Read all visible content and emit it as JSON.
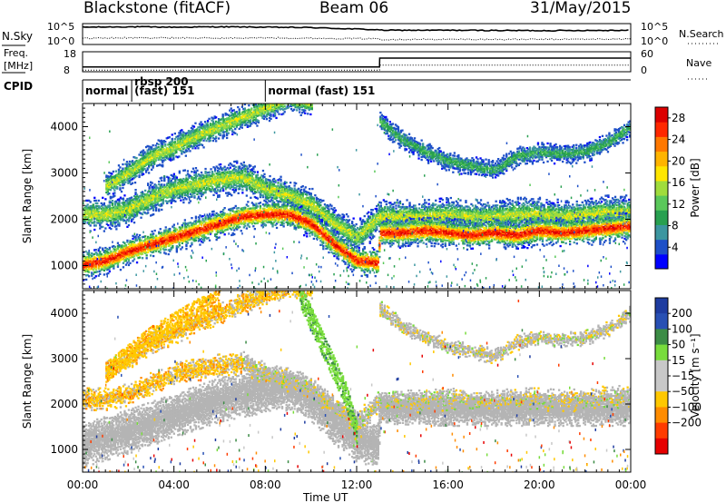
{
  "header": {
    "station": "Blackstone (fitACF)",
    "beam": "Beam 06",
    "date": "31/May/2015"
  },
  "strip_labels": {
    "nsky": "N.Sky",
    "nsky_ticks": [
      "10^5",
      "10^0"
    ],
    "nsearch": "N.Search",
    "nsearch_ticks": [
      "10^5",
      "10^0"
    ],
    "freq": "Freq.",
    "freq_unit": "[MHz]",
    "freq_ticks": [
      "18",
      "8"
    ],
    "nave": "Nave",
    "nave_ticks": [
      "60",
      "0"
    ],
    "cpid": "CPID",
    "cpid_segments": [
      "normal",
      "rbsp 200",
      "(fast) 151",
      "normal (fast) 151"
    ]
  },
  "colors": {
    "background": "#ffffff",
    "axis": "#000000",
    "ground_scatter": "#b4b4b4",
    "power_scale": [
      "#0000ff",
      "#1e50c8",
      "#3c96a0",
      "#28a050",
      "#5ac85a",
      "#a0dc3c",
      "#ffe600",
      "#ffb400",
      "#ff7800",
      "#ff2800",
      "#dc0000"
    ],
    "velocity_scale": [
      "#1e3ca0",
      "#2850b4",
      "#3c8c46",
      "#78dc3c",
      "#c8c8c8",
      "#c8c8c8",
      "#ffc800",
      "#ff8c00",
      "#ff3c00",
      "#e60000"
    ]
  },
  "chart_data": [
    {
      "type": "heatmap",
      "panel": "power",
      "title": "",
      "xlabel": "",
      "ylabel": "Slant Range [km]",
      "x_range_hours": [
        0,
        24
      ],
      "y_range_km": [
        500,
        4500
      ],
      "y_ticks": [
        1000,
        2000,
        3000,
        4000
      ],
      "colorbar": {
        "label": "Power [dB]",
        "ticks": [
          4,
          8,
          12,
          16,
          20,
          24,
          28
        ],
        "range": [
          0,
          30
        ]
      },
      "main_band": {
        "description_hours": [
          0,
          1,
          2,
          3,
          4,
          5,
          6,
          7,
          8,
          9,
          10,
          11,
          12,
          12.9,
          13,
          14,
          15,
          16,
          17,
          18,
          19,
          20,
          21,
          22,
          23,
          24
        ],
        "center_km": [
          1000,
          1100,
          1300,
          1450,
          1600,
          1750,
          1900,
          2050,
          2100,
          2100,
          1900,
          1450,
          1100,
          1050,
          1700,
          1700,
          1750,
          1700,
          1650,
          1700,
          1650,
          1750,
          1700,
          1750,
          1800,
          1850
        ],
        "peak_db": 28
      },
      "upper_band": {
        "hours": [
          0,
          1,
          2,
          3,
          4,
          5,
          6,
          7,
          8,
          9,
          10,
          11,
          12,
          13,
          14,
          15,
          16,
          17,
          18,
          19,
          20,
          21,
          22,
          23,
          24
        ],
        "center_km": [
          2100,
          2100,
          2200,
          2450,
          2650,
          2750,
          2850,
          2900,
          2650,
          2500,
          2300,
          1900,
          1600,
          2050,
          2050,
          2050,
          2100,
          2050,
          2050,
          2100,
          2100,
          2050,
          2100,
          2150,
          2150
        ],
        "peak_db": 16
      },
      "far_band": {
        "hours": [
          1,
          2,
          3,
          4,
          5,
          6,
          7,
          8,
          9,
          10
        ],
        "center_km": [
          2700,
          3000,
          3350,
          3550,
          3800,
          4000,
          4200,
          4400,
          4600,
          4500
        ],
        "peak_db": 16
      },
      "late_far_band": {
        "hours": [
          13,
          14,
          15,
          16,
          17,
          18,
          19,
          20,
          21,
          22,
          23,
          24
        ],
        "center_km": [
          4100,
          3700,
          3450,
          3250,
          3150,
          3050,
          3350,
          3450,
          3400,
          3450,
          3650,
          4000
        ],
        "peak_db": 10
      }
    },
    {
      "type": "heatmap",
      "panel": "velocity",
      "title": "",
      "xlabel": "Time UT",
      "ylabel": "Slant Range [km]",
      "x_range_hours": [
        0,
        24
      ],
      "y_range_km": [
        500,
        4500
      ],
      "y_ticks": [
        1000,
        2000,
        3000,
        4000
      ],
      "x_ticks": [
        "00:00",
        "04:00",
        "08:00",
        "12:00",
        "16:00",
        "20:00",
        "00:00"
      ],
      "colorbar": {
        "label": "Velocity [m s⁻¹]",
        "ticks": [
          200,
          100,
          50,
          15,
          -15,
          -50,
          -100,
          -200
        ]
      },
      "ground_scatter_band": {
        "hours": [
          0,
          2,
          4,
          6,
          8,
          9,
          10,
          11,
          12,
          12.9,
          13,
          16,
          20,
          24
        ],
        "center_km": [
          1100,
          1400,
          1750,
          2100,
          2300,
          2350,
          2100,
          1600,
          1200,
          1100,
          1900,
          1850,
          1850,
          1850
        ],
        "velocity_ms": 0
      },
      "positive_streams": [
        {
          "hours": [
            9.5,
            10.5,
            11.5,
            12.0
          ],
          "center_km": [
            4400,
            3300,
            2200,
            1300
          ],
          "velocity_ms": 60
        }
      ],
      "negative_streams": [
        {
          "hours": [
            1,
            2,
            3,
            4,
            5,
            6
          ],
          "center_km": [
            2700,
            3100,
            3500,
            3800,
            4100,
            4300
          ],
          "velocity_ms": -40
        }
      ]
    }
  ],
  "strip_series": {
    "hours": [
      0,
      2,
      4,
      6,
      8,
      10,
      12,
      13,
      13.01,
      16,
      20,
      24
    ],
    "nsky_log10": [
      4.3,
      4.4,
      4.3,
      4.4,
      4.3,
      4.2,
      3.8,
      3.6,
      3.5,
      3.5,
      3.4,
      3.5
    ],
    "nsearch_log10": [
      1.4,
      1.5,
      1.5,
      1.4,
      1.5,
      1.4,
      1.3,
      1.3,
      1.1,
      1.1,
      1.1,
      1.2
    ],
    "freq_mhz": [
      10.4,
      10.4,
      10.4,
      10.4,
      10.4,
      10.4,
      10.4,
      10.4,
      14.8,
      14.8,
      14.8,
      14.8
    ],
    "nave": [
      5,
      5,
      5,
      5,
      5,
      5,
      5,
      5,
      20,
      20,
      20,
      20
    ]
  }
}
